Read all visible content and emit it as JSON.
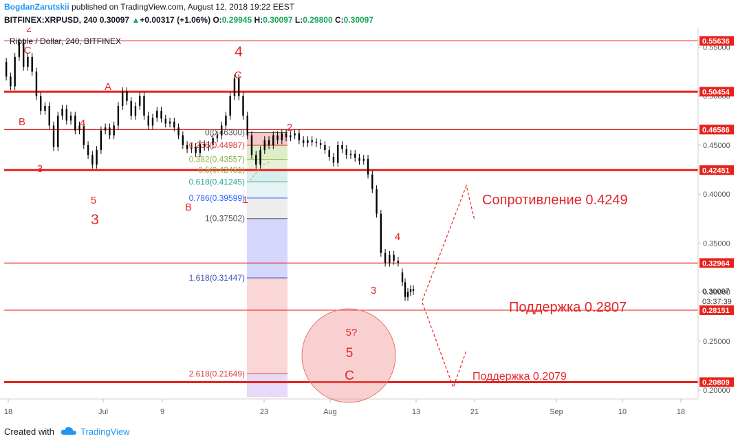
{
  "header": {
    "author": "BogdanZarutskii",
    "published_text": "published on TradingView.com, August 12, 2018 19:22 EEST",
    "symbol": "BITFINEX:XRPUSD, 240",
    "last": "0.30097",
    "change": "+0.00317 (+1.06%)",
    "o_label": "O:",
    "o": "0.29945",
    "h_label": "H:",
    "h": "0.30097",
    "l_label": "L:",
    "l": "0.29800",
    "c_label": "C:",
    "c": "0.30097"
  },
  "footer": {
    "created_with": "Created with",
    "brand": "TradingView"
  },
  "colors": {
    "level_line": "#e8221b",
    "annotation": "#e0262a",
    "candles": "#000000",
    "axis_text": "#555555",
    "price_tag_bg": "#e8221b",
    "fib_red": "#d9413c",
    "fib_green": "#8db34a",
    "fib_teal": "#26a69a",
    "fib_blue": "#2962ff",
    "fib_navy": "#3f51b5",
    "fib_gray": "#555555",
    "fib_purple": "#7b1fa2"
  },
  "chart_data": {
    "type": "candlestick",
    "title": "Ripple / Dollar, 240, BITFINEX",
    "x_axis": {
      "ticks": [
        "18",
        "Jul",
        "9",
        "23",
        "Aug",
        "13",
        "21",
        "Sep",
        "10",
        "18"
      ]
    },
    "y_axis": {
      "range": [
        0.193,
        0.563
      ],
      "ticks": [
        "0.55000",
        "0.50000",
        "0.45000",
        "0.40000",
        "0.35000",
        "0.30000",
        "0.25000",
        "0.20000"
      ],
      "tick_values": [
        0.55,
        0.5,
        0.45,
        0.4,
        0.35,
        0.3,
        0.25,
        0.2
      ]
    },
    "current_price": {
      "value": 0.30097,
      "label": "0.30097",
      "countdown": "03:37:39"
    },
    "horizontal_levels": [
      {
        "value": 0.55636,
        "label": "0.55636",
        "weight": "thin"
      },
      {
        "value": 0.50454,
        "label": "0.50454",
        "weight": "thick"
      },
      {
        "value": 0.46586,
        "label": "0.46586",
        "weight": "thin"
      },
      {
        "value": 0.42451,
        "label": "0.42451",
        "weight": "thick"
      },
      {
        "value": 0.32964,
        "label": "0.32964",
        "weight": "thin"
      },
      {
        "value": 0.28151,
        "label": "0.28151",
        "weight": "thin"
      },
      {
        "value": 0.20809,
        "label": "0.20809",
        "weight": "thick"
      }
    ],
    "fib_levels": [
      {
        "ratio": "0",
        "value": 0.463,
        "label": "0(0.46300)",
        "color": "#555555"
      },
      {
        "ratio": "0.236",
        "value": 0.44987,
        "label": "0.236(0.44987)",
        "color": "#d9413c"
      },
      {
        "ratio": "0.382",
        "value": 0.43557,
        "label": "0.382(0.43557)",
        "color": "#8db34a"
      },
      {
        "ratio": "0.5",
        "value": 0.42481,
        "label": "0.5(0.42481)",
        "color": "#8db34a"
      },
      {
        "ratio": "0.618",
        "value": 0.41245,
        "label": "0.618(0.41245)",
        "color": "#26a69a"
      },
      {
        "ratio": "0.786",
        "value": 0.39599,
        "label": "0.786(0.39599)",
        "color": "#2962ff"
      },
      {
        "ratio": "1",
        "value": 0.37502,
        "label": "1(0.37502)",
        "color": "#555555"
      },
      {
        "ratio": "1.618",
        "value": 0.31447,
        "label": "1.618(0.31447)",
        "color": "#3f51b5"
      },
      {
        "ratio": "2.618",
        "value": 0.21649,
        "label": "2.618(0.21649)",
        "color": "#d9413c"
      }
    ],
    "annotations": {
      "resistance": "Сопротивление 0.4249",
      "support1": "Поддержка 0.2807",
      "support2": "Поддержка 0.2079",
      "wave_labels": [
        "2",
        "C",
        "B",
        "3",
        "4",
        "5",
        "3",
        "A",
        "4",
        "C",
        "2",
        "1",
        "B",
        "4",
        "3",
        "5?",
        "5",
        "C"
      ]
    },
    "price_path": [
      [
        0.535,
        0.52
      ],
      [
        0.52,
        0.51
      ],
      [
        0.51,
        0.54
      ],
      [
        0.54,
        0.555
      ],
      [
        0.555,
        0.53
      ],
      [
        0.53,
        0.54
      ],
      [
        0.54,
        0.525
      ],
      [
        0.525,
        0.5
      ],
      [
        0.5,
        0.485
      ],
      [
        0.485,
        0.49
      ],
      [
        0.49,
        0.47
      ],
      [
        0.47,
        0.448
      ],
      [
        0.448,
        0.48
      ],
      [
        0.48,
        0.487
      ],
      [
        0.487,
        0.475
      ],
      [
        0.475,
        0.48
      ],
      [
        0.48,
        0.465
      ],
      [
        0.465,
        0.47
      ],
      [
        0.47,
        0.45
      ],
      [
        0.45,
        0.44
      ],
      [
        0.44,
        0.43
      ],
      [
        0.43,
        0.445
      ],
      [
        0.445,
        0.465
      ],
      [
        0.465,
        0.468
      ],
      [
        0.468,
        0.46
      ],
      [
        0.46,
        0.47
      ],
      [
        0.47,
        0.49
      ],
      [
        0.49,
        0.505
      ],
      [
        0.505,
        0.495
      ],
      [
        0.495,
        0.48
      ],
      [
        0.48,
        0.49
      ],
      [
        0.49,
        0.5
      ],
      [
        0.5,
        0.48
      ],
      [
        0.48,
        0.47
      ],
      [
        0.47,
        0.478
      ],
      [
        0.478,
        0.485
      ],
      [
        0.485,
        0.477
      ],
      [
        0.477,
        0.472
      ],
      [
        0.472,
        0.474
      ],
      [
        0.474,
        0.468
      ],
      [
        0.468,
        0.46
      ],
      [
        0.46,
        0.45
      ],
      [
        0.45,
        0.446
      ],
      [
        0.446,
        0.448
      ],
      [
        0.448,
        0.442
      ],
      [
        0.442,
        0.451
      ],
      [
        0.451,
        0.448
      ],
      [
        0.448,
        0.45
      ],
      [
        0.45,
        0.457
      ],
      [
        0.457,
        0.46
      ],
      [
        0.46,
        0.47
      ],
      [
        0.47,
        0.48
      ],
      [
        0.48,
        0.5
      ],
      [
        0.5,
        0.518
      ],
      [
        0.518,
        0.5
      ],
      [
        0.5,
        0.48
      ],
      [
        0.48,
        0.46
      ],
      [
        0.46,
        0.44
      ],
      [
        0.44,
        0.43
      ],
      [
        0.43,
        0.445
      ],
      [
        0.445,
        0.455
      ],
      [
        0.455,
        0.45
      ],
      [
        0.45,
        0.46
      ],
      [
        0.46,
        0.455
      ],
      [
        0.455,
        0.462
      ],
      [
        0.462,
        0.458
      ],
      [
        0.458,
        0.46
      ],
      [
        0.46,
        0.462
      ],
      [
        0.462,
        0.455
      ],
      [
        0.455,
        0.452
      ],
      [
        0.452,
        0.455
      ],
      [
        0.455,
        0.453
      ],
      [
        0.453,
        0.452
      ],
      [
        0.452,
        0.45
      ],
      [
        0.45,
        0.445
      ],
      [
        0.445,
        0.438
      ],
      [
        0.438,
        0.432
      ],
      [
        0.432,
        0.45
      ],
      [
        0.45,
        0.446
      ],
      [
        0.446,
        0.44
      ],
      [
        0.44,
        0.441
      ],
      [
        0.441,
        0.437
      ],
      [
        0.437,
        0.434
      ],
      [
        0.434,
        0.436
      ],
      [
        0.436,
        0.42
      ],
      [
        0.42,
        0.405
      ],
      [
        0.405,
        0.38
      ],
      [
        0.38,
        0.34
      ],
      [
        0.34,
        0.33
      ],
      [
        0.33,
        0.338
      ],
      [
        0.338,
        0.332
      ],
      [
        0.332,
        0.33
      ]
    ],
    "price_path_2": [
      [
        0.32,
        0.31
      ],
      [
        0.31,
        0.295
      ],
      [
        0.295,
        0.3
      ],
      [
        0.3,
        0.303
      ],
      [
        0.303,
        0.301
      ]
    ]
  }
}
